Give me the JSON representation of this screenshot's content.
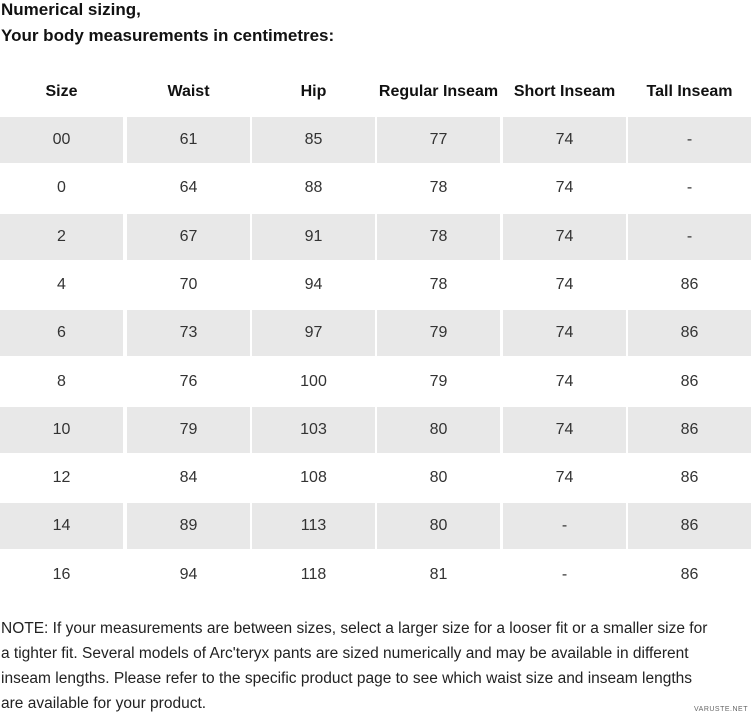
{
  "header": {
    "title_lines": [
      "Numerical sizing,",
      "Your body measurements in centimetres:"
    ]
  },
  "table": {
    "columns": [
      "Size",
      "Waist",
      "Hip",
      "Regular Inseam",
      "Short Inseam",
      "Tall Inseam"
    ],
    "rows": [
      [
        "00",
        "61",
        "85",
        "77",
        "74",
        "-"
      ],
      [
        "0",
        "64",
        "88",
        "78",
        "74",
        "-"
      ],
      [
        "2",
        "67",
        "91",
        "78",
        "74",
        "-"
      ],
      [
        "4",
        "70",
        "94",
        "78",
        "74",
        "86"
      ],
      [
        "6",
        "73",
        "97",
        "79",
        "74",
        "86"
      ],
      [
        "8",
        "76",
        "100",
        "79",
        "74",
        "86"
      ],
      [
        "10",
        "79",
        "103",
        "80",
        "74",
        "86"
      ],
      [
        "12",
        "84",
        "108",
        "80",
        "74",
        "86"
      ],
      [
        "14",
        "89",
        "113",
        "80",
        "-",
        "86"
      ],
      [
        "16",
        "94",
        "118",
        "81",
        "-",
        "86"
      ]
    ]
  },
  "note": {
    "lines": [
      "NOTE: If your measurements are between sizes, select a larger size for a looser fit or a smaller size for",
      "a tighter fit. Several models of Arc'teryx pants are sized numerically and may be available in different",
      "inseam lengths. Please refer to the specific product page to see which waist size and inseam lengths",
      "are available for your product."
    ]
  },
  "watermark": "VARUSTE.NET"
}
